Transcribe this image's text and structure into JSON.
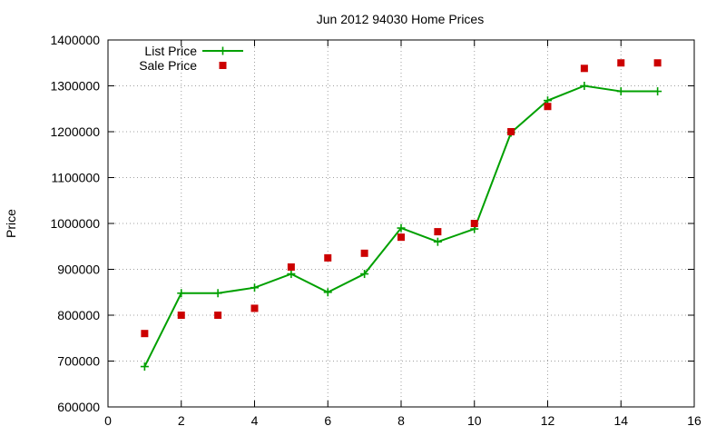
{
  "chart_data": {
    "type": "line",
    "title": "Jun 2012 94030 Home Prices",
    "xlabel": "",
    "ylabel": "Price",
    "xlim": [
      0,
      16
    ],
    "ylim": [
      600000,
      1400000
    ],
    "x_ticks": [
      0,
      2,
      4,
      6,
      8,
      10,
      12,
      14,
      16
    ],
    "y_ticks": [
      600000,
      700000,
      800000,
      900000,
      1000000,
      1100000,
      1200000,
      1300000,
      1400000
    ],
    "grid": true,
    "legend_position": "top-left",
    "series": [
      {
        "name": "List Price",
        "style": "line+plus",
        "color": "#00a000",
        "x": [
          1,
          2,
          3,
          4,
          5,
          6,
          7,
          8,
          9,
          10,
          11,
          12,
          13,
          14,
          15
        ],
        "values": [
          688000,
          848000,
          848000,
          860000,
          890000,
          850000,
          890000,
          990000,
          960000,
          988000,
          1198000,
          1268000,
          1300000,
          1288000,
          1288000
        ]
      },
      {
        "name": "Sale Price",
        "style": "square-points",
        "color": "#cc0000",
        "x": [
          1,
          2,
          3,
          4,
          5,
          6,
          7,
          8,
          9,
          10,
          11,
          12,
          13,
          14,
          15
        ],
        "values": [
          760000,
          800000,
          800000,
          815000,
          905000,
          925000,
          935000,
          970000,
          982000,
          1000000,
          1200000,
          1255000,
          1338000,
          1350000,
          1350000
        ]
      }
    ]
  }
}
